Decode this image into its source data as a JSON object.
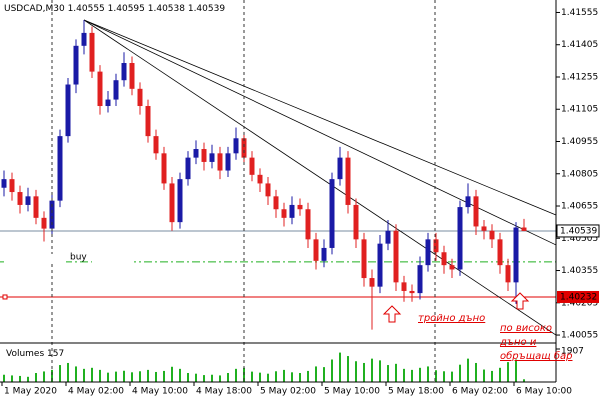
{
  "chart_data": {
    "type": "candlestick",
    "symbol": "USDCAD,M30",
    "open": [
      1.4074,
      1.4078,
      1.4072,
      1.4066,
      1.407,
      1.406,
      1.4055,
      1.4068,
      1.4098,
      1.4122,
      1.414,
      1.4146,
      1.4128,
      1.4112,
      1.4115,
      1.4124,
      1.4132,
      1.412,
      1.4112,
      1.4098,
      1.409,
      1.4076,
      1.4058,
      1.4078,
      1.4088,
      1.4092,
      1.4086,
      1.409,
      1.4082,
      1.409,
      1.4097,
      1.4088,
      1.408,
      1.4076,
      1.407,
      1.4064,
      1.406,
      1.4066,
      1.4064,
      1.405,
      1.404,
      1.4046,
      1.4078,
      1.4088,
      1.4066,
      1.405,
      1.4032,
      1.4028,
      1.4048,
      1.4054,
      1.403,
      1.4026,
      1.4025,
      1.4038,
      1.405,
      1.4044,
      1.4038,
      1.4036,
      1.4065,
      1.407,
      1.4056,
      1.4054,
      1.405,
      1.4038,
      1.403,
      1.40555
    ],
    "high": [
      1.4082,
      1.4081,
      1.4075,
      1.4074,
      1.4073,
      1.4063,
      1.4071,
      1.4101,
      1.4125,
      1.4143,
      1.4152,
      1.4149,
      1.4131,
      1.4119,
      1.4127,
      1.4137,
      1.4135,
      1.4123,
      1.4115,
      1.4101,
      1.4093,
      1.4079,
      1.4081,
      1.4091,
      1.4096,
      1.4095,
      1.4094,
      1.4093,
      1.4093,
      1.4102,
      1.41,
      1.4091,
      1.4083,
      1.4079,
      1.4073,
      1.4067,
      1.407,
      1.4069,
      1.4067,
      1.4053,
      1.405,
      1.4081,
      1.4093,
      1.4091,
      1.4069,
      1.4053,
      1.4036,
      1.4052,
      1.4059,
      1.4057,
      1.4033,
      1.4029,
      1.4042,
      1.4053,
      1.4053,
      1.4047,
      1.4041,
      1.4068,
      1.4076,
      1.4073,
      1.4059,
      1.4057,
      1.4053,
      1.4041,
      1.4058,
      1.40595
    ],
    "low": [
      1.407,
      1.4068,
      1.4062,
      1.4063,
      1.4057,
      1.4049,
      1.4052,
      1.4065,
      1.4095,
      1.4118,
      1.4136,
      1.4125,
      1.4108,
      1.4109,
      1.4112,
      1.4121,
      1.4117,
      1.4108,
      1.4095,
      1.4087,
      1.4073,
      1.4054,
      1.4055,
      1.4075,
      1.4085,
      1.4082,
      1.4083,
      1.4078,
      1.4079,
      1.4087,
      1.4085,
      1.4077,
      1.4072,
      1.4066,
      1.406,
      1.4056,
      1.4057,
      1.4061,
      1.4046,
      1.4036,
      1.4037,
      1.4043,
      1.4075,
      1.4062,
      1.4046,
      1.4028,
      1.4008,
      1.4025,
      1.4045,
      1.4026,
      1.4021,
      1.4021,
      1.4022,
      1.4035,
      1.404,
      1.4034,
      1.4032,
      1.4033,
      1.4062,
      1.4052,
      1.405,
      1.4046,
      1.4034,
      1.4026,
      1.402,
      1.40538
    ],
    "close": [
      1.4078,
      1.4072,
      1.4066,
      1.407,
      1.406,
      1.4055,
      1.4068,
      1.4098,
      1.4122,
      1.414,
      1.4146,
      1.4128,
      1.4112,
      1.4115,
      1.4124,
      1.4132,
      1.412,
      1.4112,
      1.4098,
      1.409,
      1.4076,
      1.4058,
      1.4078,
      1.4088,
      1.4092,
      1.4086,
      1.409,
      1.4082,
      1.409,
      1.4097,
      1.4088,
      1.408,
      1.4076,
      1.407,
      1.4064,
      1.406,
      1.4066,
      1.4064,
      1.405,
      1.404,
      1.4046,
      1.4078,
      1.4088,
      1.4066,
      1.405,
      1.4032,
      1.4028,
      1.4048,
      1.4054,
      1.403,
      1.4026,
      1.4025,
      1.4038,
      1.405,
      1.4044,
      1.4038,
      1.4036,
      1.4065,
      1.407,
      1.4056,
      1.4054,
      1.405,
      1.4038,
      1.403,
      1.40555,
      1.40539
    ],
    "bull_color": "#1a1aa6",
    "bear_color": "#e02020",
    "ylim": [
      1.40018,
      1.41613
    ],
    "yticks": [
      1.41555,
      1.41405,
      1.41255,
      1.41105,
      1.40955,
      1.40805,
      1.40655,
      1.40505,
      1.40355,
      1.40205,
      1.40055
    ],
    "x_labels": [
      "1 May 2020",
      "4 May 02:00",
      "4 May 10:00",
      "4 May 18:00",
      "5 May 02:00",
      "5 May 10:00",
      "5 May 18:00",
      "6 May 02:00",
      "6 May 10:00"
    ],
    "trendlines": [
      {
        "from": [
          10,
          1.4152
        ],
        "to": [
          69,
          1.40613
        ]
      },
      {
        "from": [
          10,
          1.4152
        ],
        "to": [
          69,
          1.40474
        ]
      },
      {
        "from": [
          10,
          1.4152
        ],
        "to": [
          69,
          1.40055
        ]
      }
    ],
    "current_price_color": "#7a8ca0",
    "level": 1.40232,
    "level_color": "#e00000",
    "order_level": 1.40395,
    "order_color": "#20b020",
    "order_label": "buy",
    "volume_title": "Volumes",
    "volumes": [
      420,
      380,
      350,
      300,
      520,
      610,
      700,
      980,
      1100,
      900,
      760,
      820,
      700,
      540,
      600,
      650,
      560,
      620,
      700,
      580,
      640,
      880,
      760,
      520,
      480,
      400,
      420,
      380,
      520,
      760,
      820,
      600,
      540,
      480,
      620,
      700,
      560,
      520,
      640,
      900,
      860,
      1300,
      1700,
      1500,
      1200,
      1100,
      1350,
      1250,
      980,
      1050,
      760,
      700,
      820,
      900,
      680,
      620,
      600,
      1000,
      1350,
      1100,
      720,
      640,
      820,
      1150,
      1300,
      157
    ],
    "volume_color": "#20b020",
    "volume_ylim": [
      0,
      1907
    ],
    "volume_yticks": [
      1907
    ],
    "annotations": [
      "тройно дъно",
      "по високо",
      "дъно и",
      "обръщащ бар"
    ]
  }
}
